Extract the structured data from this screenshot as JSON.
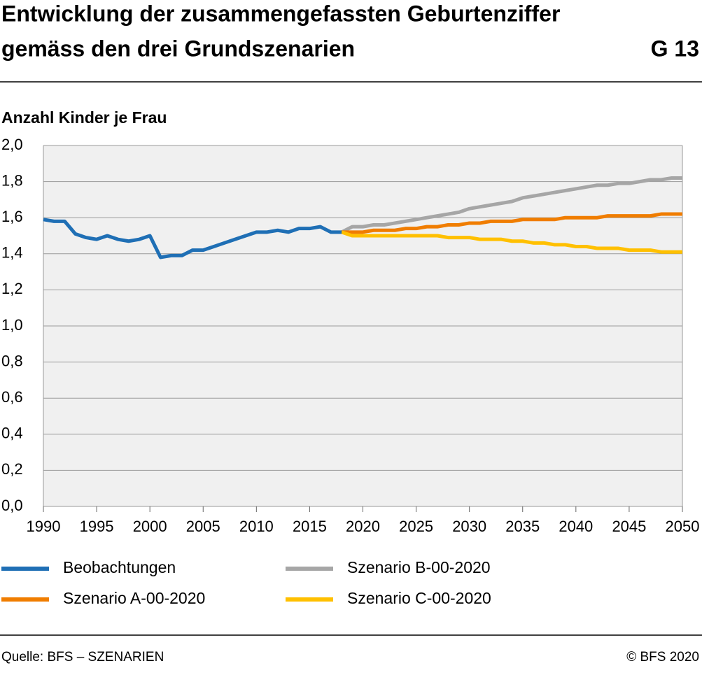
{
  "chart_data": {
    "type": "line",
    "title": [
      "Entwicklung der zusammengefassten Geburtenziffer",
      "gemäss den drei Grundszenarien"
    ],
    "chart_id": "G 13",
    "ylabel": "Anzahl Kinder je Frau",
    "source": "Quelle: BFS – SZENARIEN",
    "copyright": "© BFS 2020",
    "x": [
      1990,
      1991,
      1992,
      1993,
      1994,
      1995,
      1996,
      1997,
      1998,
      1999,
      2000,
      2001,
      2002,
      2003,
      2004,
      2005,
      2006,
      2007,
      2008,
      2009,
      2010,
      2011,
      2012,
      2013,
      2014,
      2015,
      2016,
      2017,
      2018,
      2019,
      2020,
      2021,
      2022,
      2023,
      2024,
      2025,
      2026,
      2027,
      2028,
      2029,
      2030,
      2031,
      2032,
      2033,
      2034,
      2035,
      2036,
      2037,
      2038,
      2039,
      2040,
      2041,
      2042,
      2043,
      2044,
      2045,
      2046,
      2047,
      2048,
      2049,
      2050
    ],
    "series": [
      {
        "name": "Beobachtungen",
        "color": "#1f6fb5",
        "values": [
          1.59,
          1.58,
          1.58,
          1.51,
          1.49,
          1.48,
          1.5,
          1.48,
          1.47,
          1.48,
          1.5,
          1.38,
          1.39,
          1.39,
          1.42,
          1.42,
          1.44,
          1.46,
          1.48,
          1.5,
          1.52,
          1.52,
          1.53,
          1.52,
          1.54,
          1.54,
          1.55,
          1.52,
          1.52,
          null,
          null,
          null,
          null,
          null,
          null,
          null,
          null,
          null,
          null,
          null,
          null,
          null,
          null,
          null,
          null,
          null,
          null,
          null,
          null,
          null,
          null,
          null,
          null,
          null,
          null,
          null,
          null,
          null,
          null,
          null,
          null
        ]
      },
      {
        "name": "Szenario A-00-2020",
        "color": "#f07d00",
        "values": [
          null,
          null,
          null,
          null,
          null,
          null,
          null,
          null,
          null,
          null,
          null,
          null,
          null,
          null,
          null,
          null,
          null,
          null,
          null,
          null,
          null,
          null,
          null,
          null,
          null,
          null,
          null,
          null,
          1.52,
          1.52,
          1.52,
          1.53,
          1.53,
          1.53,
          1.54,
          1.54,
          1.55,
          1.55,
          1.56,
          1.56,
          1.57,
          1.57,
          1.58,
          1.58,
          1.58,
          1.59,
          1.59,
          1.59,
          1.59,
          1.6,
          1.6,
          1.6,
          1.6,
          1.61,
          1.61,
          1.61,
          1.61,
          1.61,
          1.62,
          1.62,
          1.62
        ]
      },
      {
        "name": "Szenario B-00-2020",
        "color": "#a6a6a6",
        "values": [
          null,
          null,
          null,
          null,
          null,
          null,
          null,
          null,
          null,
          null,
          null,
          null,
          null,
          null,
          null,
          null,
          null,
          null,
          null,
          null,
          null,
          null,
          null,
          null,
          null,
          null,
          null,
          null,
          1.52,
          1.55,
          1.55,
          1.56,
          1.56,
          1.57,
          1.58,
          1.59,
          1.6,
          1.61,
          1.62,
          1.63,
          1.65,
          1.66,
          1.67,
          1.68,
          1.69,
          1.71,
          1.72,
          1.73,
          1.74,
          1.75,
          1.76,
          1.77,
          1.78,
          1.78,
          1.79,
          1.79,
          1.8,
          1.81,
          1.81,
          1.82,
          1.82
        ]
      },
      {
        "name": "Szenario C-00-2020",
        "color": "#ffc000",
        "values": [
          null,
          null,
          null,
          null,
          null,
          null,
          null,
          null,
          null,
          null,
          null,
          null,
          null,
          null,
          null,
          null,
          null,
          null,
          null,
          null,
          null,
          null,
          null,
          null,
          null,
          null,
          null,
          null,
          1.52,
          1.5,
          1.5,
          1.5,
          1.5,
          1.5,
          1.5,
          1.5,
          1.5,
          1.5,
          1.49,
          1.49,
          1.49,
          1.48,
          1.48,
          1.48,
          1.47,
          1.47,
          1.46,
          1.46,
          1.45,
          1.45,
          1.44,
          1.44,
          1.43,
          1.43,
          1.43,
          1.42,
          1.42,
          1.42,
          1.41,
          1.41,
          1.41
        ]
      }
    ],
    "xlim": [
      1990,
      2050
    ],
    "xticks": [
      1990,
      1995,
      2000,
      2005,
      2010,
      2015,
      2020,
      2025,
      2030,
      2035,
      2040,
      2045,
      2050
    ],
    "ylim": [
      0,
      2
    ],
    "yticks": [
      {
        "value": 0,
        "label": "0,0"
      },
      {
        "value": 0.2,
        "label": "0,2"
      },
      {
        "value": 0.4,
        "label": "0,4"
      },
      {
        "value": 0.6,
        "label": "0,6"
      },
      {
        "value": 0.8,
        "label": "0,8"
      },
      {
        "value": 1,
        "label": "1,0"
      },
      {
        "value": 1.2,
        "label": "1,2"
      },
      {
        "value": 1.4,
        "label": "1,4"
      },
      {
        "value": 1.6,
        "label": "1,6"
      },
      {
        "value": 1.8,
        "label": "1,8"
      },
      {
        "value": 2,
        "label": "2,0"
      }
    ],
    "grid": "y"
  }
}
